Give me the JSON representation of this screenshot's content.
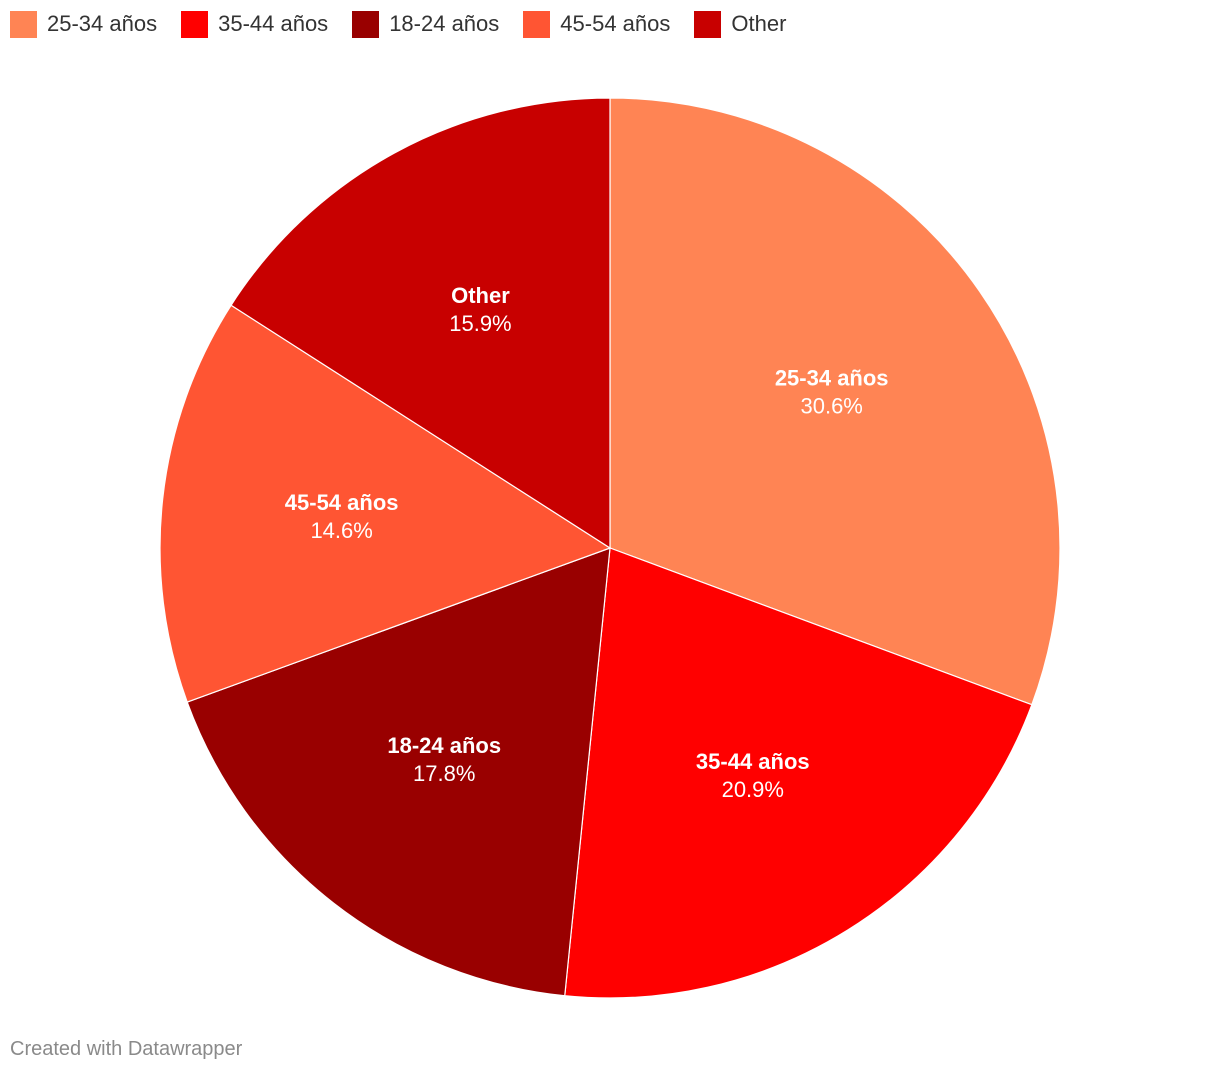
{
  "chart_data": {
    "type": "pie",
    "categories": [
      "25-34 años",
      "35-44 años",
      "18-24 años",
      "45-54 años",
      "Other"
    ],
    "values": [
      30.6,
      20.9,
      17.8,
      14.6,
      15.9
    ],
    "value_labels": [
      "30.6%",
      "20.9%",
      "17.8%",
      "14.6%",
      "15.9%"
    ],
    "colors": [
      "#ff8454",
      "#ff0000",
      "#990000",
      "#ff5533",
      "#c80000"
    ],
    "credit": "Created with Datawrapper"
  }
}
